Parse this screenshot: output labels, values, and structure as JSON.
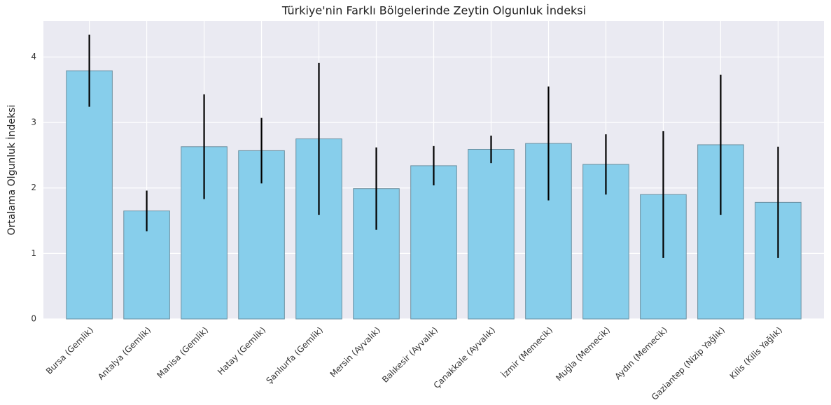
{
  "chart_data": {
    "type": "bar",
    "title": "Türkiye'nin Farklı Bölgelerinde Zeytin Olgunluk İndeksi",
    "y_label": "Ortalama Olgunluk İndeksi",
    "categories": [
      "Bursa (Gemlik)",
      "Antalya (Gemlik)",
      "Manisa (Gemlik)",
      "Hatay (Gemlik)",
      "Şanlıurfa (Gemlik)",
      "Mersin (Ayvalık)",
      "Balıkesir (Ayvalık)",
      "Çanakkale (Ayvalık)",
      "İzmir (Memecik)",
      "Muğla (Memecik)",
      "Aydın (Memecik)",
      "Gaziantep (Nizip Yağlık)",
      "Kilis (Kilis Yağlık)"
    ],
    "values": [
      3.79,
      1.65,
      2.63,
      2.57,
      2.75,
      1.99,
      2.34,
      2.59,
      2.68,
      2.36,
      1.9,
      2.66,
      1.78
    ],
    "errors": [
      0.55,
      0.31,
      0.8,
      0.5,
      1.16,
      0.63,
      0.3,
      0.21,
      0.87,
      0.46,
      0.97,
      1.07,
      0.85
    ],
    "color": "#87ceeb",
    "edge_color": "#6a8fa0",
    "error_color": "#000000",
    "ylim": [
      0,
      4.55
    ],
    "yticks": [
      0,
      1,
      2,
      3,
      4
    ],
    "grid": true
  }
}
